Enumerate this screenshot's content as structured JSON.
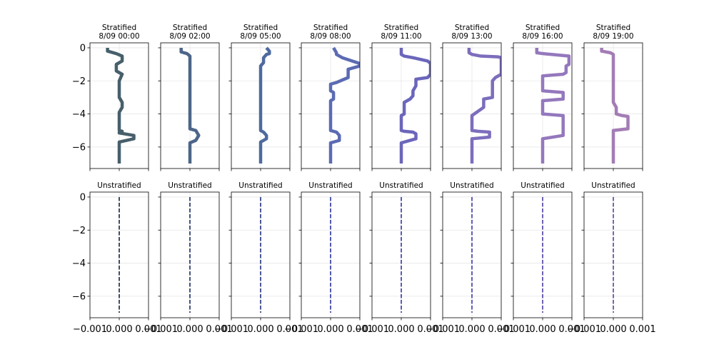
{
  "figure": {
    "xlim": [
      -0.001,
      0.001
    ],
    "ylim": [
      -7.3,
      0.3
    ],
    "y_ticks": [
      0,
      -2,
      -4,
      -6
    ],
    "y_tick_labels": [
      "0",
      "−2",
      "−4",
      "−6"
    ],
    "x_ticks": [
      -0.001,
      0.0,
      0.001
    ],
    "x_tick_labels": [
      "−0.001",
      "0.000",
      "0.001"
    ],
    "grid": true
  },
  "chart_data": [
    {
      "type": "line",
      "title": "Stratified\n8/09 00:00",
      "ylim": [
        -7.3,
        0.3
      ],
      "xlim": [
        -0.001,
        0.001
      ],
      "color": "#475f6b",
      "x": [
        -0.0004,
        -0.0004,
        -0.0001,
        0.0001,
        0.0001,
        -0.0001,
        -0.0001,
        0.0001,
        0.0,
        0.0,
        0.0,
        0.0001,
        0.0001,
        0.0,
        0.0,
        0.0,
        0.0,
        0.0,
        0.0,
        0.0001,
        0.0001,
        0.0,
        0.0,
        0.0005,
        0.0005,
        0.0,
        0.0,
        0.0
      ],
      "y": [
        0,
        -0.2,
        -0.35,
        -0.5,
        -0.8,
        -1.0,
        -1.4,
        -1.6,
        -2.0,
        -2.5,
        -3.0,
        -3.3,
        -3.6,
        -3.9,
        -4.2,
        -4.5,
        -4.7,
        -4.9,
        -5.0,
        -5.05,
        -5.1,
        -5.12,
        -5.15,
        -5.3,
        -5.5,
        -5.7,
        -6.4,
        -7.0
      ]
    },
    {
      "type": "line",
      "title": "Stratified\n8/09 02:00",
      "ylim": [
        -7.3,
        0.3
      ],
      "xlim": [
        -0.001,
        0.001
      ],
      "color": "#4d6589",
      "x": [
        -0.0003,
        -0.0003,
        -0.0001,
        0.0,
        0.0,
        0.0,
        0.0,
        0.0,
        0.0,
        0.0,
        0.0,
        0.0,
        0.0,
        0.0002,
        0.0003,
        0.0002,
        0.0,
        0.0,
        0.0
      ],
      "y": [
        0,
        -0.25,
        -0.35,
        -0.5,
        -1.0,
        -1.5,
        -2.0,
        -2.5,
        -3.0,
        -3.5,
        -4.0,
        -4.5,
        -4.9,
        -5.0,
        -5.3,
        -5.6,
        -5.75,
        -6.4,
        -7.0
      ]
    },
    {
      "type": "line",
      "title": "Stratified\n8/09 05:00",
      "ylim": [
        -7.3,
        0.3
      ],
      "xlim": [
        -0.001,
        0.001
      ],
      "color": "#4e6a9f",
      "x": [
        0.0002,
        0.0003,
        0.0003,
        0.0002,
        0.0001,
        0.0001,
        0.0,
        0.0,
        0.0,
        0.0,
        0.0,
        0.0,
        0.0,
        0.0,
        0.0001,
        0.0002,
        0.0002,
        0.0,
        0.0,
        0.0
      ],
      "y": [
        0,
        -0.2,
        -0.35,
        -0.4,
        -0.6,
        -0.9,
        -1.1,
        -1.6,
        -2.0,
        -3.0,
        -3.5,
        -4.0,
        -4.5,
        -5.0,
        -5.1,
        -5.3,
        -5.5,
        -5.7,
        -6.4,
        -7.0
      ]
    },
    {
      "type": "line",
      "title": "Stratified\n8/09 08:00",
      "ylim": [
        -7.3,
        0.3
      ],
      "xlim": [
        -0.001,
        0.001
      ],
      "color": "#5b6bb3",
      "x": [
        0.0001,
        0.0002,
        0.0002,
        0.0004,
        0.001,
        0.001,
        0.0006,
        0.0006,
        0.0002,
        0.0,
        0.0,
        0.0001,
        0.0001,
        0.0,
        0.0,
        0.0002,
        0.0003,
        0.0003,
        0.0,
        0.0,
        0.0
      ],
      "y": [
        0,
        -0.3,
        -0.4,
        -0.6,
        -0.95,
        -1.1,
        -1.3,
        -1.8,
        -2.1,
        -2.2,
        -2.6,
        -2.7,
        -3.1,
        -3.2,
        -5.0,
        -5.1,
        -5.3,
        -5.6,
        -5.75,
        -6.4,
        -7.0
      ]
    },
    {
      "type": "line",
      "title": "Stratified\n8/09 11:00",
      "ylim": [
        -7.3,
        0.3
      ],
      "xlim": [
        -0.001,
        0.001
      ],
      "color": "#6b66bb",
      "x": [
        0.0,
        0.0,
        0.0001,
        0.0004,
        0.0009,
        0.001,
        0.001,
        0.0009,
        0.0005,
        0.0005,
        0.0004,
        0.0004,
        0.0003,
        0.0001,
        0.0001,
        0.0,
        0.0,
        0.0001,
        0.0004,
        0.0005,
        0.0005,
        0.0,
        0.0,
        0.0
      ],
      "y": [
        0,
        -0.4,
        -0.5,
        -0.6,
        -0.8,
        -0.95,
        -1.6,
        -1.8,
        -1.9,
        -2.3,
        -2.6,
        -2.9,
        -3.1,
        -3.3,
        -4.0,
        -4.1,
        -5.0,
        -5.05,
        -5.1,
        -5.2,
        -5.5,
        -5.75,
        -6.4,
        -7.0
      ]
    },
    {
      "type": "line",
      "title": "Stratified\n8/09 13:00",
      "ylim": [
        -7.3,
        0.3
      ],
      "xlim": [
        -0.001,
        0.001
      ],
      "color": "#7d6dbd",
      "x": [
        -0.0001,
        -0.0001,
        0.0,
        0.0003,
        0.0009,
        0.001,
        0.001,
        0.0008,
        0.0007,
        0.0007,
        0.0004,
        0.0004,
        0.0,
        0.0,
        0.0002,
        0.0006,
        0.0006,
        0.0,
        0.0,
        0.0
      ],
      "y": [
        0,
        -0.3,
        -0.4,
        -0.5,
        -0.55,
        -0.6,
        -1.6,
        -1.8,
        -2.0,
        -3.0,
        -3.1,
        -3.6,
        -4.1,
        -5.0,
        -5.05,
        -5.1,
        -5.4,
        -5.5,
        -6.3,
        -7.0
      ]
    },
    {
      "type": "line",
      "title": "Stratified\n8/09 16:00",
      "ylim": [
        -7.3,
        0.3
      ],
      "xlim": [
        -0.001,
        0.001
      ],
      "color": "#9478bd",
      "x": [
        -0.0002,
        -0.0002,
        0.0,
        0.0009,
        0.0009,
        0.0009,
        0.0008,
        0.0008,
        0.0007,
        0.0,
        0.0,
        0.0,
        0.0007,
        0.0007,
        0.0,
        0.0,
        0.0007,
        0.0007,
        0.0,
        0.0,
        0.0
      ],
      "y": [
        0,
        -0.3,
        -0.35,
        -0.5,
        -0.6,
        -1.0,
        -1.1,
        -1.5,
        -1.6,
        -1.7,
        -2.3,
        -2.6,
        -2.7,
        -3.1,
        -3.2,
        -4.0,
        -4.1,
        -5.3,
        -5.5,
        -6.4,
        -7.0
      ]
    },
    {
      "type": "line",
      "title": "Stratified\n8/09 19:00",
      "ylim": [
        -7.3,
        0.3
      ],
      "xlim": [
        -0.001,
        0.001
      ],
      "color": "#a37cb5",
      "x": [
        -0.0004,
        -0.0004,
        -0.0001,
        0.0,
        0.0,
        0.0,
        0.0,
        0.0,
        0.0001,
        0.0001,
        0.0003,
        0.0005,
        0.0005,
        0.0,
        0.0,
        0.0
      ],
      "y": [
        0,
        -0.2,
        -0.3,
        -0.4,
        -1.0,
        -2.0,
        -3.0,
        -3.3,
        -3.6,
        -4.0,
        -4.1,
        -4.15,
        -4.9,
        -5.0,
        -6.4,
        -7.0
      ]
    },
    {
      "type": "line",
      "title": "Unstratified",
      "ylim": [
        -7.3,
        0.3
      ],
      "xlim": [
        -0.001,
        0.001
      ],
      "color": "#0f2240",
      "dashed": true,
      "x": [
        0.0,
        0.0
      ],
      "y": [
        0,
        -7.0
      ]
    },
    {
      "type": "line",
      "title": "Unstratified",
      "ylim": [
        -7.3,
        0.3
      ],
      "xlim": [
        -0.001,
        0.001
      ],
      "color": "#15295f",
      "dashed": true,
      "x": [
        0.0,
        0.0
      ],
      "y": [
        0,
        -7.0
      ]
    },
    {
      "type": "line",
      "title": "Unstratified",
      "ylim": [
        -7.3,
        0.3
      ],
      "xlim": [
        -0.001,
        0.001
      ],
      "color": "#1f2f7a",
      "dashed": true,
      "x": [
        0.0,
        0.0
      ],
      "y": [
        0,
        -7.0
      ]
    },
    {
      "type": "line",
      "title": "Unstratified",
      "ylim": [
        -7.3,
        0.3
      ],
      "xlim": [
        -0.001,
        0.001
      ],
      "color": "#27319a",
      "dashed": true,
      "x": [
        0.0,
        0.0
      ],
      "y": [
        0,
        -7.0
      ]
    },
    {
      "type": "line",
      "title": "Unstratified",
      "ylim": [
        -7.3,
        0.3
      ],
      "xlim": [
        -0.001,
        0.001
      ],
      "color": "#2f33a8",
      "dashed": true,
      "x": [
        0.0,
        0.0
      ],
      "y": [
        0,
        -7.0
      ]
    },
    {
      "type": "line",
      "title": "Unstratified",
      "ylim": [
        -7.3,
        0.3
      ],
      "xlim": [
        -0.001,
        0.001
      ],
      "color": "#3a35a6",
      "dashed": true,
      "x": [
        0.0,
        0.0
      ],
      "y": [
        0,
        -7.0
      ]
    },
    {
      "type": "line",
      "title": "Unstratified",
      "ylim": [
        -7.3,
        0.3
      ],
      "xlim": [
        -0.001,
        0.001
      ],
      "color": "#4b3aa0",
      "dashed": true,
      "x": [
        0.0,
        0.0
      ],
      "y": [
        0,
        -7.0
      ]
    },
    {
      "type": "line",
      "title": "Unstratified",
      "ylim": [
        -7.3,
        0.3
      ],
      "xlim": [
        -0.001,
        0.001
      ],
      "color": "#5d3e95",
      "dashed": true,
      "x": [
        0.0,
        0.0
      ],
      "y": [
        0,
        -7.0
      ]
    }
  ]
}
